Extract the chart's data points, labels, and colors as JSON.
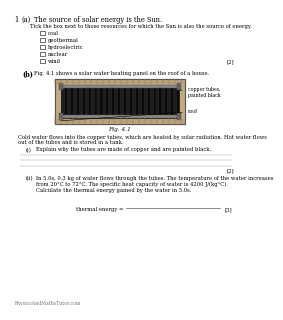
{
  "bg_color": "#ffffff",
  "q_number": "1",
  "qa_label": "(a)",
  "qa_text": "The source of solar energy is the Sun.",
  "tick_instruction": "Tick the box next to those resources for which the Sun is also the source of energy.",
  "tick_options": [
    "coal",
    "geothermal",
    "hydroelectric",
    "nuclear",
    "wind"
  ],
  "marks_a": "[2]",
  "qb_label": "(b)",
  "qb_text": "Fig. 4.1 shows a solar water heating panel on the roof of a house.",
  "fig_label": "Fig. 4.1",
  "fig_ann1": "copper tubes,\npainted black",
  "fig_ann2": "roof",
  "body_text1": "Cold water flows into the copper tubes, which are heated by solar radiation. Hot water flows",
  "body_text2": "out of the tubes and is stored in a tank.",
  "qi_label": "(i)",
  "qi_text": "Explain why the tubes are made of copper and are painted black.",
  "marks_i": "[2]",
  "qii_label": "(ii)",
  "qii_text1": "In 5.0s, 0.3 kg of water flows through the tubes. The temperature of the water increases",
  "qii_text2": "from 20°C to 72°C. The specific heat capacity of water is 4200 J/(kg°C).",
  "qii_sub": "Calculate the thermal energy gained by the water in 5.0s.",
  "answer_label": "thermal energy = ",
  "marks_ii": "[3]",
  "footer": "PhysicsAndMathsTutor.com",
  "fs_title": 5.5,
  "fs_body": 4.8,
  "fs_small": 4.2,
  "fs_tiny": 3.8
}
